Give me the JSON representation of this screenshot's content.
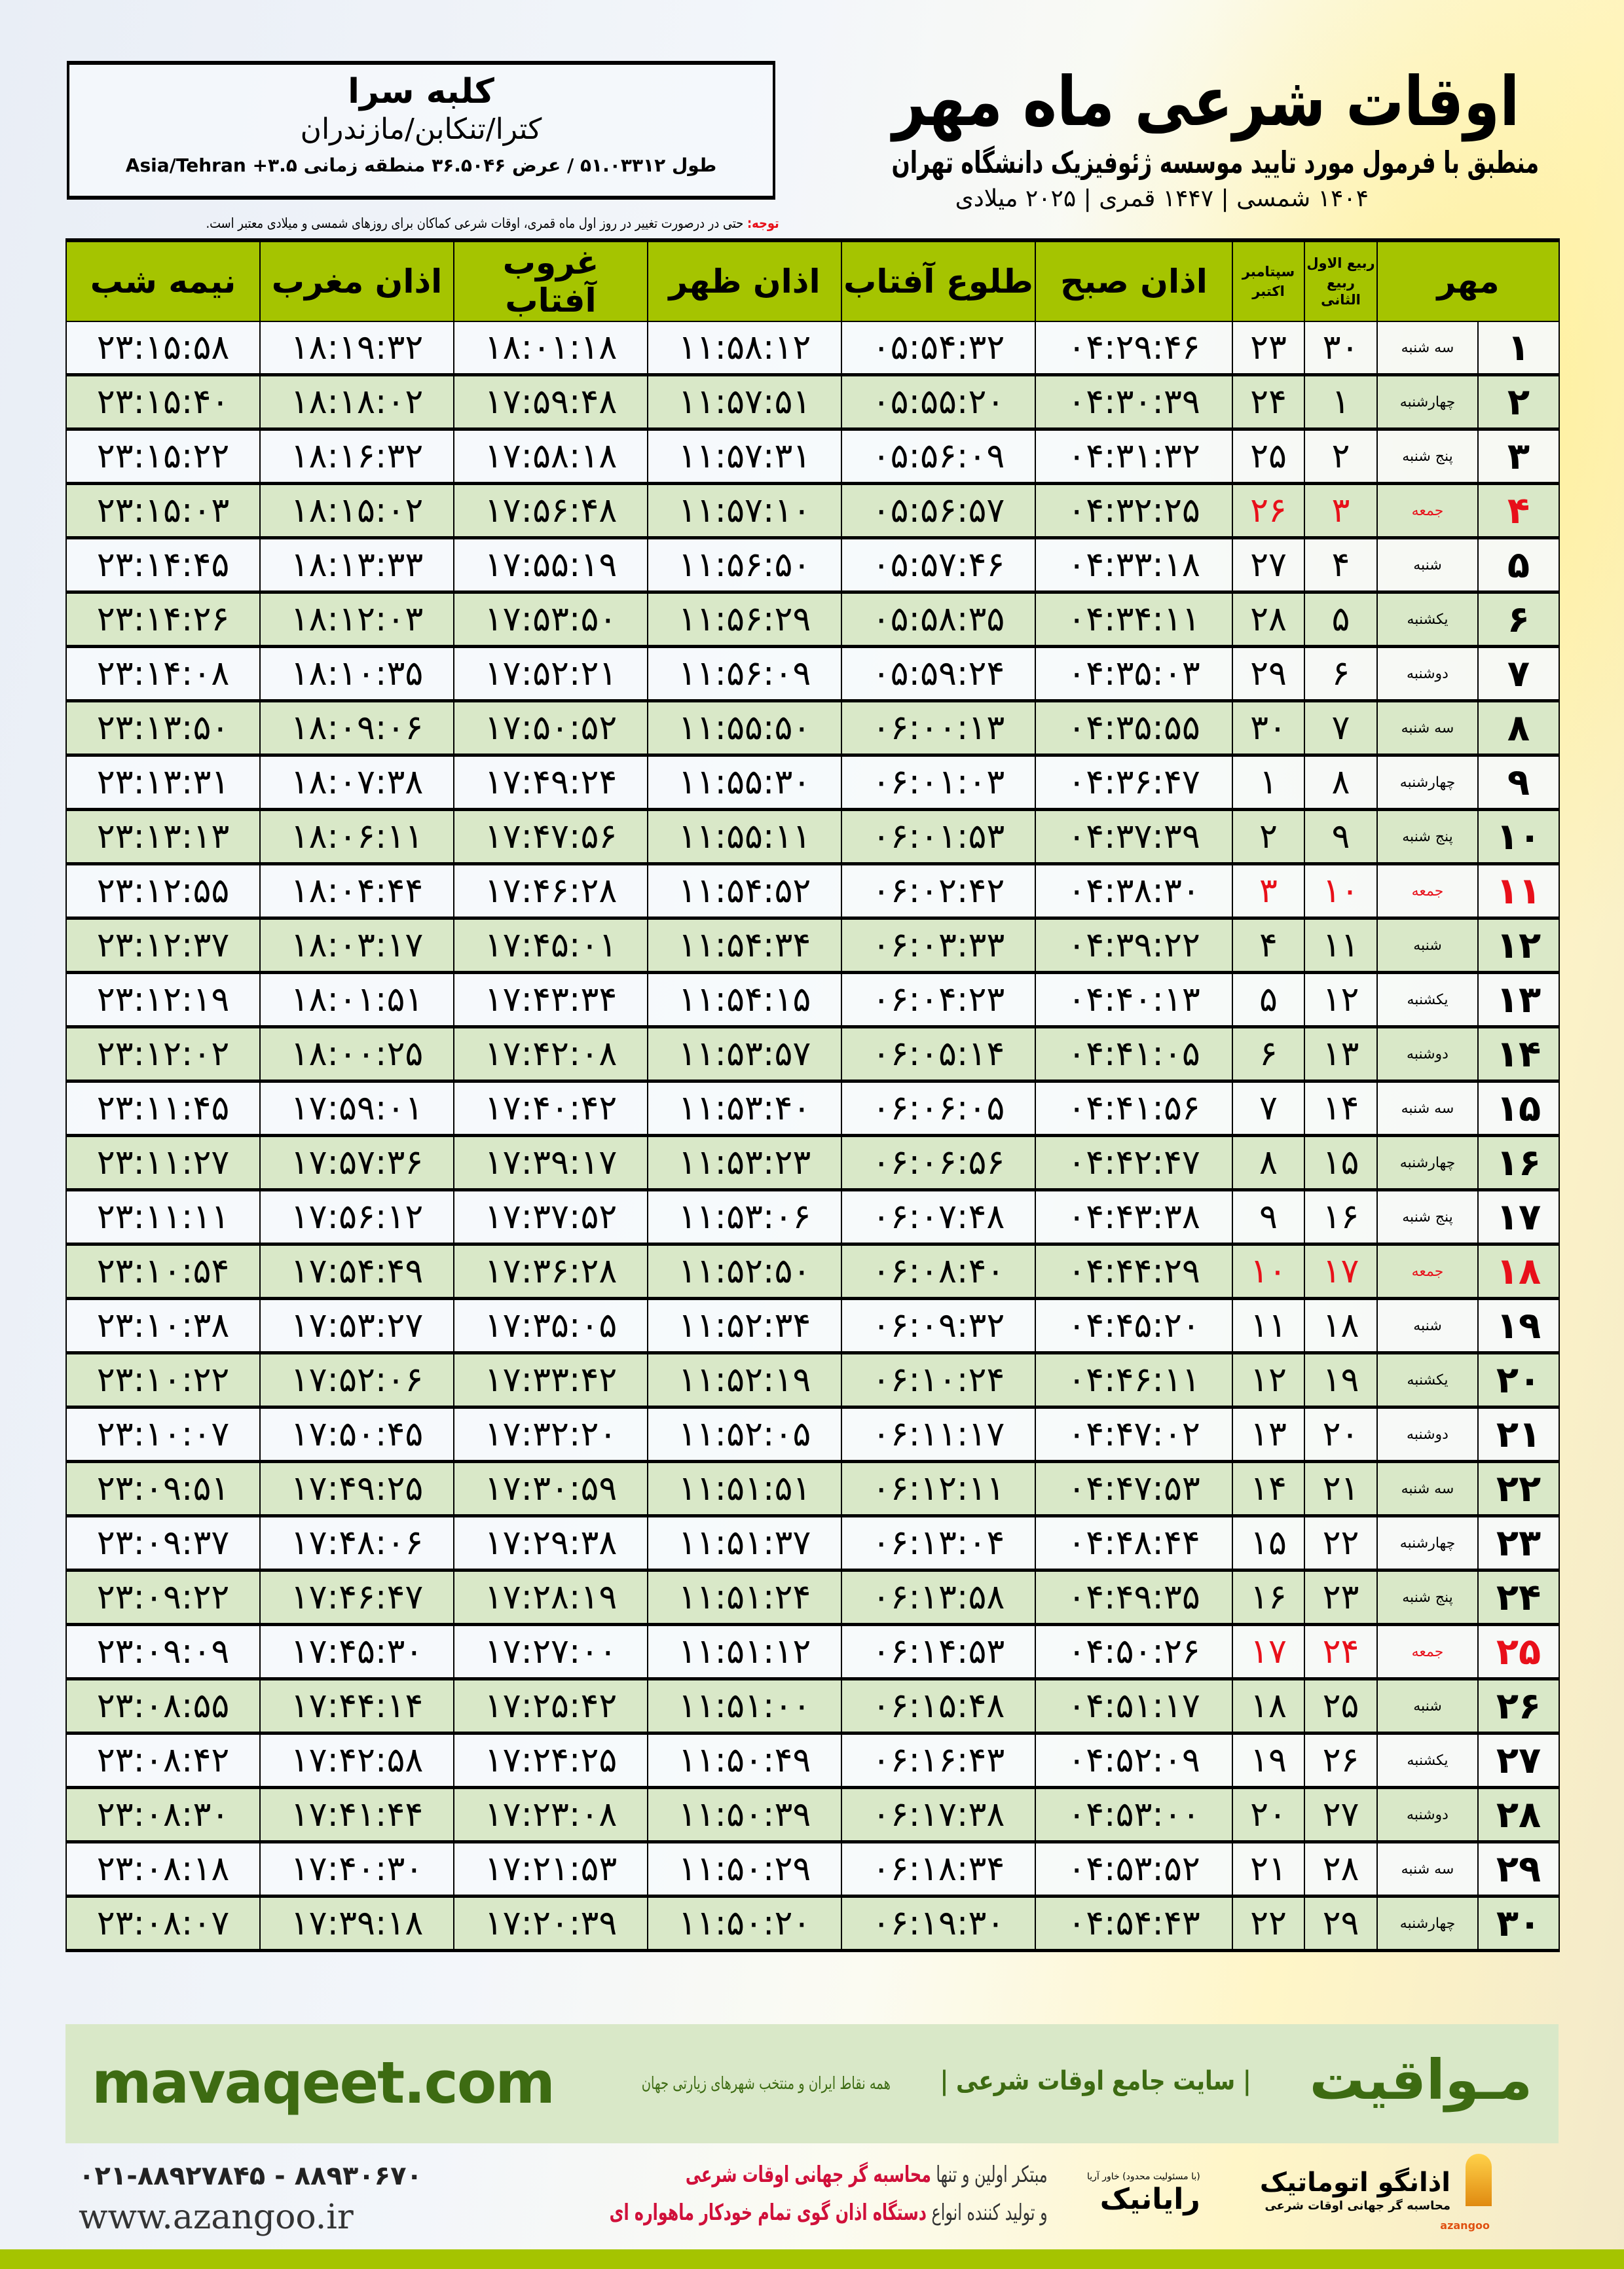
{
  "header": {
    "title": "اوقات شرعی ماه مهر",
    "subtitle": "منطبق با فرمول مورد تایید موسسه ژئوفیزیک دانشگاه تهران",
    "dateline": "۱۴۰۴ شمسی | ۱۴۴۷ قمری | ۲۰۲۵ میلادی",
    "note_label": "توجه:",
    "note_text": " حتی در درصورت تغییر در روز اول ماه قمری، اوقات شرعی کماکان برای روزهای شمسی و میلادی معتبر است."
  },
  "location": {
    "city": "کلبه سرا",
    "region": "کترا/تنکابن/مازندران",
    "coords": "طول ۵۱.۰۳۳۱۲ / عرض ۳۶.۵۰۴۶ منطقه زمانی ۳.۵+ Asia/Tehran"
  },
  "table": {
    "headers": {
      "day": "مهر",
      "hijri_top": "ربیع الاول",
      "hijri_bottom": "ربیع الثانی",
      "greg_top": "سپتامبر",
      "greg_bottom": "اکتبر",
      "subh": "اذان صبح",
      "tolu": "طلوع آفتاب",
      "zohr": "اذان ظهر",
      "ghorub": "غروب آفتاب",
      "maghreb": "اذان مغرب",
      "nime": "نیمه شب"
    },
    "holiday_color": "#e8101a",
    "header_color": "#a5c400",
    "alt_row_color": "#d9e8c8",
    "rows": [
      [
        "۱",
        "سه شنبه",
        "۳۰",
        "۲۳",
        "۰۴:۲۹:۴۶",
        "۰۵:۵۴:۳۲",
        "۱۱:۵۸:۱۲",
        "۱۸:۰۱:۱۸",
        "۱۸:۱۹:۳۲",
        "۲۳:۱۵:۵۸",
        false
      ],
      [
        "۲",
        "چهارشنبه",
        "۱",
        "۲۴",
        "۰۴:۳۰:۳۹",
        "۰۵:۵۵:۲۰",
        "۱۱:۵۷:۵۱",
        "۱۷:۵۹:۴۸",
        "۱۸:۱۸:۰۲",
        "۲۳:۱۵:۴۰",
        false
      ],
      [
        "۳",
        "پنج شنبه",
        "۲",
        "۲۵",
        "۰۴:۳۱:۳۲",
        "۰۵:۵۶:۰۹",
        "۱۱:۵۷:۳۱",
        "۱۷:۵۸:۱۸",
        "۱۸:۱۶:۳۲",
        "۲۳:۱۵:۲۲",
        false
      ],
      [
        "۴",
        "جمعه",
        "۳",
        "۲۶",
        "۰۴:۳۲:۲۵",
        "۰۵:۵۶:۵۷",
        "۱۱:۵۷:۱۰",
        "۱۷:۵۶:۴۸",
        "۱۸:۱۵:۰۲",
        "۲۳:۱۵:۰۳",
        true
      ],
      [
        "۵",
        "شنبه",
        "۴",
        "۲۷",
        "۰۴:۳۳:۱۸",
        "۰۵:۵۷:۴۶",
        "۱۱:۵۶:۵۰",
        "۱۷:۵۵:۱۹",
        "۱۸:۱۳:۳۳",
        "۲۳:۱۴:۴۵",
        false
      ],
      [
        "۶",
        "یکشنبه",
        "۵",
        "۲۸",
        "۰۴:۳۴:۱۱",
        "۰۵:۵۸:۳۵",
        "۱۱:۵۶:۲۹",
        "۱۷:۵۳:۵۰",
        "۱۸:۱۲:۰۳",
        "۲۳:۱۴:۲۶",
        false
      ],
      [
        "۷",
        "دوشنبه",
        "۶",
        "۲۹",
        "۰۴:۳۵:۰۳",
        "۰۵:۵۹:۲۴",
        "۱۱:۵۶:۰۹",
        "۱۷:۵۲:۲۱",
        "۱۸:۱۰:۳۵",
        "۲۳:۱۴:۰۸",
        false
      ],
      [
        "۸",
        "سه شنبه",
        "۷",
        "۳۰",
        "۰۴:۳۵:۵۵",
        "۰۶:۰۰:۱۳",
        "۱۱:۵۵:۵۰",
        "۱۷:۵۰:۵۲",
        "۱۸:۰۹:۰۶",
        "۲۳:۱۳:۵۰",
        false
      ],
      [
        "۹",
        "چهارشنبه",
        "۸",
        "۱",
        "۰۴:۳۶:۴۷",
        "۰۶:۰۱:۰۳",
        "۱۱:۵۵:۳۰",
        "۱۷:۴۹:۲۴",
        "۱۸:۰۷:۳۸",
        "۲۳:۱۳:۳۱",
        false
      ],
      [
        "۱۰",
        "پنج شنبه",
        "۹",
        "۲",
        "۰۴:۳۷:۳۹",
        "۰۶:۰۱:۵۳",
        "۱۱:۵۵:۱۱",
        "۱۷:۴۷:۵۶",
        "۱۸:۰۶:۱۱",
        "۲۳:۱۳:۱۳",
        false
      ],
      [
        "۱۱",
        "جمعه",
        "۱۰",
        "۳",
        "۰۴:۳۸:۳۰",
        "۰۶:۰۲:۴۲",
        "۱۱:۵۴:۵۲",
        "۱۷:۴۶:۲۸",
        "۱۸:۰۴:۴۴",
        "۲۳:۱۲:۵۵",
        true
      ],
      [
        "۱۲",
        "شنبه",
        "۱۱",
        "۴",
        "۰۴:۳۹:۲۲",
        "۰۶:۰۳:۳۳",
        "۱۱:۵۴:۳۴",
        "۱۷:۴۵:۰۱",
        "۱۸:۰۳:۱۷",
        "۲۳:۱۲:۳۷",
        false
      ],
      [
        "۱۳",
        "یکشنبه",
        "۱۲",
        "۵",
        "۰۴:۴۰:۱۳",
        "۰۶:۰۴:۲۳",
        "۱۱:۵۴:۱۵",
        "۱۷:۴۳:۳۴",
        "۱۸:۰۱:۵۱",
        "۲۳:۱۲:۱۹",
        false
      ],
      [
        "۱۴",
        "دوشنبه",
        "۱۳",
        "۶",
        "۰۴:۴۱:۰۵",
        "۰۶:۰۵:۱۴",
        "۱۱:۵۳:۵۷",
        "۱۷:۴۲:۰۸",
        "۱۸:۰۰:۲۵",
        "۲۳:۱۲:۰۲",
        false
      ],
      [
        "۱۵",
        "سه شنبه",
        "۱۴",
        "۷",
        "۰۴:۴۱:۵۶",
        "۰۶:۰۶:۰۵",
        "۱۱:۵۳:۴۰",
        "۱۷:۴۰:۴۲",
        "۱۷:۵۹:۰۱",
        "۲۳:۱۱:۴۵",
        false
      ],
      [
        "۱۶",
        "چهارشنبه",
        "۱۵",
        "۸",
        "۰۴:۴۲:۴۷",
        "۰۶:۰۶:۵۶",
        "۱۱:۵۳:۲۳",
        "۱۷:۳۹:۱۷",
        "۱۷:۵۷:۳۶",
        "۲۳:۱۱:۲۷",
        false
      ],
      [
        "۱۷",
        "پنج شنبه",
        "۱۶",
        "۹",
        "۰۴:۴۳:۳۸",
        "۰۶:۰۷:۴۸",
        "۱۱:۵۳:۰۶",
        "۱۷:۳۷:۵۲",
        "۱۷:۵۶:۱۲",
        "۲۳:۱۱:۱۱",
        false
      ],
      [
        "۱۸",
        "جمعه",
        "۱۷",
        "۱۰",
        "۰۴:۴۴:۲۹",
        "۰۶:۰۸:۴۰",
        "۱۱:۵۲:۵۰",
        "۱۷:۳۶:۲۸",
        "۱۷:۵۴:۴۹",
        "۲۳:۱۰:۵۴",
        true
      ],
      [
        "۱۹",
        "شنبه",
        "۱۸",
        "۱۱",
        "۰۴:۴۵:۲۰",
        "۰۶:۰۹:۳۲",
        "۱۱:۵۲:۳۴",
        "۱۷:۳۵:۰۵",
        "۱۷:۵۳:۲۷",
        "۲۳:۱۰:۳۸",
        false
      ],
      [
        "۲۰",
        "یکشنبه",
        "۱۹",
        "۱۲",
        "۰۴:۴۶:۱۱",
        "۰۶:۱۰:۲۴",
        "۱۱:۵۲:۱۹",
        "۱۷:۳۳:۴۲",
        "۱۷:۵۲:۰۶",
        "۲۳:۱۰:۲۲",
        false
      ],
      [
        "۲۱",
        "دوشنبه",
        "۲۰",
        "۱۳",
        "۰۴:۴۷:۰۲",
        "۰۶:۱۱:۱۷",
        "۱۱:۵۲:۰۵",
        "۱۷:۳۲:۲۰",
        "۱۷:۵۰:۴۵",
        "۲۳:۱۰:۰۷",
        false
      ],
      [
        "۲۲",
        "سه شنبه",
        "۲۱",
        "۱۴",
        "۰۴:۴۷:۵۳",
        "۰۶:۱۲:۱۱",
        "۱۱:۵۱:۵۱",
        "۱۷:۳۰:۵۹",
        "۱۷:۴۹:۲۵",
        "۲۳:۰۹:۵۱",
        false
      ],
      [
        "۲۳",
        "چهارشنبه",
        "۲۲",
        "۱۵",
        "۰۴:۴۸:۴۴",
        "۰۶:۱۳:۰۴",
        "۱۱:۵۱:۳۷",
        "۱۷:۲۹:۳۸",
        "۱۷:۴۸:۰۶",
        "۲۳:۰۹:۳۷",
        false
      ],
      [
        "۲۴",
        "پنج شنبه",
        "۲۳",
        "۱۶",
        "۰۴:۴۹:۳۵",
        "۰۶:۱۳:۵۸",
        "۱۱:۵۱:۲۴",
        "۱۷:۲۸:۱۹",
        "۱۷:۴۶:۴۷",
        "۲۳:۰۹:۲۲",
        false
      ],
      [
        "۲۵",
        "جمعه",
        "۲۴",
        "۱۷",
        "۰۴:۵۰:۲۶",
        "۰۶:۱۴:۵۳",
        "۱۱:۵۱:۱۲",
        "۱۷:۲۷:۰۰",
        "۱۷:۴۵:۳۰",
        "۲۳:۰۹:۰۹",
        true
      ],
      [
        "۲۶",
        "شنبه",
        "۲۵",
        "۱۸",
        "۰۴:۵۱:۱۷",
        "۰۶:۱۵:۴۸",
        "۱۱:۵۱:۰۰",
        "۱۷:۲۵:۴۲",
        "۱۷:۴۴:۱۴",
        "۲۳:۰۸:۵۵",
        false
      ],
      [
        "۲۷",
        "یکشنبه",
        "۲۶",
        "۱۹",
        "۰۴:۵۲:۰۹",
        "۰۶:۱۶:۴۳",
        "۱۱:۵۰:۴۹",
        "۱۷:۲۴:۲۵",
        "۱۷:۴۲:۵۸",
        "۲۳:۰۸:۴۲",
        false
      ],
      [
        "۲۸",
        "دوشنبه",
        "۲۷",
        "۲۰",
        "۰۴:۵۳:۰۰",
        "۰۶:۱۷:۳۸",
        "۱۱:۵۰:۳۹",
        "۱۷:۲۳:۰۸",
        "۱۷:۴۱:۴۴",
        "۲۳:۰۸:۳۰",
        false
      ],
      [
        "۲۹",
        "سه شنبه",
        "۲۸",
        "۲۱",
        "۰۴:۵۳:۵۲",
        "۰۶:۱۸:۳۴",
        "۱۱:۵۰:۲۹",
        "۱۷:۲۱:۵۳",
        "۱۷:۴۰:۳۰",
        "۲۳:۰۸:۱۸",
        false
      ],
      [
        "۳۰",
        "چهارشنبه",
        "۲۹",
        "۲۲",
        "۰۴:۵۴:۴۳",
        "۰۶:۱۹:۳۰",
        "۱۱:۵۰:۲۰",
        "۱۷:۲۰:۳۹",
        "۱۷:۳۹:۱۸",
        "۲۳:۰۸:۰۷",
        false
      ]
    ]
  },
  "banner": {
    "brand": "مـواقیت",
    "tagline": "| سایت جامع اوقات شرعی |",
    "tagline2": "همه نقاط ایران و منتخب شهرهای زیارتی جهان",
    "site": "mavaqeet.com"
  },
  "footer": {
    "phone": "۰۲۱-۸۸۹۲۷۸۴۵ - ۸۸۹۳۰۶۷۰",
    "www": "www.azangoo.ir",
    "line1_a": "مبتکر اولین و تنها ",
    "line1_b": "محاسبه گر جهانی اوقات شرعی",
    "line2_a": "و تولید کننده انواع ",
    "line2_b": "دستگاه اذان گوی تمام خودکار ماهواره ای",
    "logo_rayanik": "رایانیک",
    "logo_rayanik_small": "(با مسئولیت محدود) خاور آریا",
    "logo_azangoo": "اذانگو اتوماتیک",
    "logo_azangoo_sub": "محاسبه گر جهانی اوقات شرعی",
    "logo_azangoo_latin": "azangoo"
  }
}
